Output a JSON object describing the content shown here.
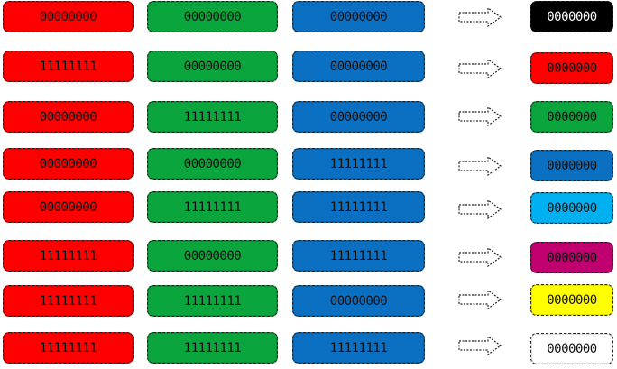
{
  "columns": {
    "red": "#ff0000",
    "green": "#0aa53c",
    "blue": "#0b6fc2"
  },
  "arrow_icon": "right-arrow-icon",
  "rows": [
    {
      "r": "00000000",
      "g": "00000000",
      "b": "00000000",
      "out": "0000000",
      "out_color": "#000000",
      "out_text_color": "#ffffff"
    },
    {
      "r": "11111111",
      "g": "00000000",
      "b": "00000000",
      "out": "0000000",
      "out_color": "#ff0000",
      "out_text_color": "#111111"
    },
    {
      "r": "00000000",
      "g": "11111111",
      "b": "00000000",
      "out": "0000000",
      "out_color": "#0aa53c",
      "out_text_color": "#111111"
    },
    {
      "r": "00000000",
      "g": "00000000",
      "b": "11111111",
      "out": "0000000",
      "out_color": "#0b6fc2",
      "out_text_color": "#111111"
    },
    {
      "r": "00000000",
      "g": "11111111",
      "b": "11111111",
      "out": "0000000",
      "out_color": "#00b0f0",
      "out_text_color": "#111111"
    },
    {
      "r": "11111111",
      "g": "00000000",
      "b": "11111111",
      "out": "0000000",
      "out_color": "#c0006f",
      "out_text_color": "#111111"
    },
    {
      "r": "11111111",
      "g": "11111111",
      "b": "00000000",
      "out": "0000000",
      "out_color": "#ffff00",
      "out_text_color": "#111111"
    },
    {
      "r": "11111111",
      "g": "11111111",
      "b": "11111111",
      "out": "0000000",
      "out_color": "#ffffff",
      "out_text_color": "#111111"
    }
  ]
}
